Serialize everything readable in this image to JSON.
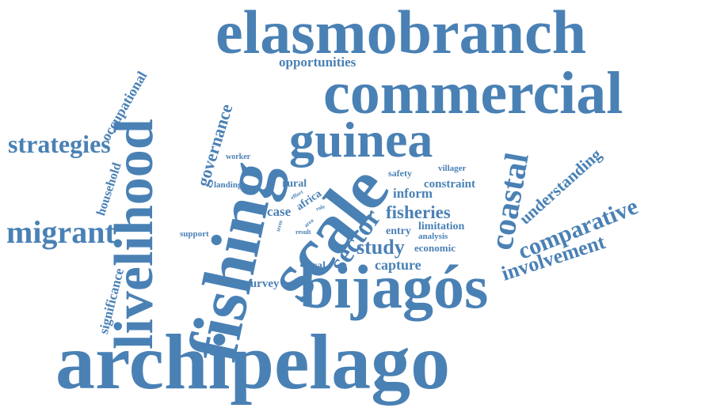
{
  "colors": {
    "word": "#4a81b5",
    "background": "#ffffff"
  },
  "words": [
    "archipelago",
    "bijagós",
    "fishing",
    "livelihood",
    "scale",
    "elasmobranch",
    "commercial",
    "guinea",
    "coastal",
    "migrant",
    "strategies",
    "sector",
    "comparative",
    "involvement",
    "understanding",
    "governance",
    "occupational",
    "household",
    "significance",
    "opportunities",
    "study",
    "fisheries",
    "inform",
    "capture",
    "local",
    "survey",
    "constraint",
    "limitation",
    "analysis",
    "economic",
    "entry",
    "case",
    "rural",
    "africa",
    "safety",
    "villager",
    "worker",
    "landing",
    "support",
    "effort",
    "result",
    "area",
    "role",
    "term"
  ]
}
